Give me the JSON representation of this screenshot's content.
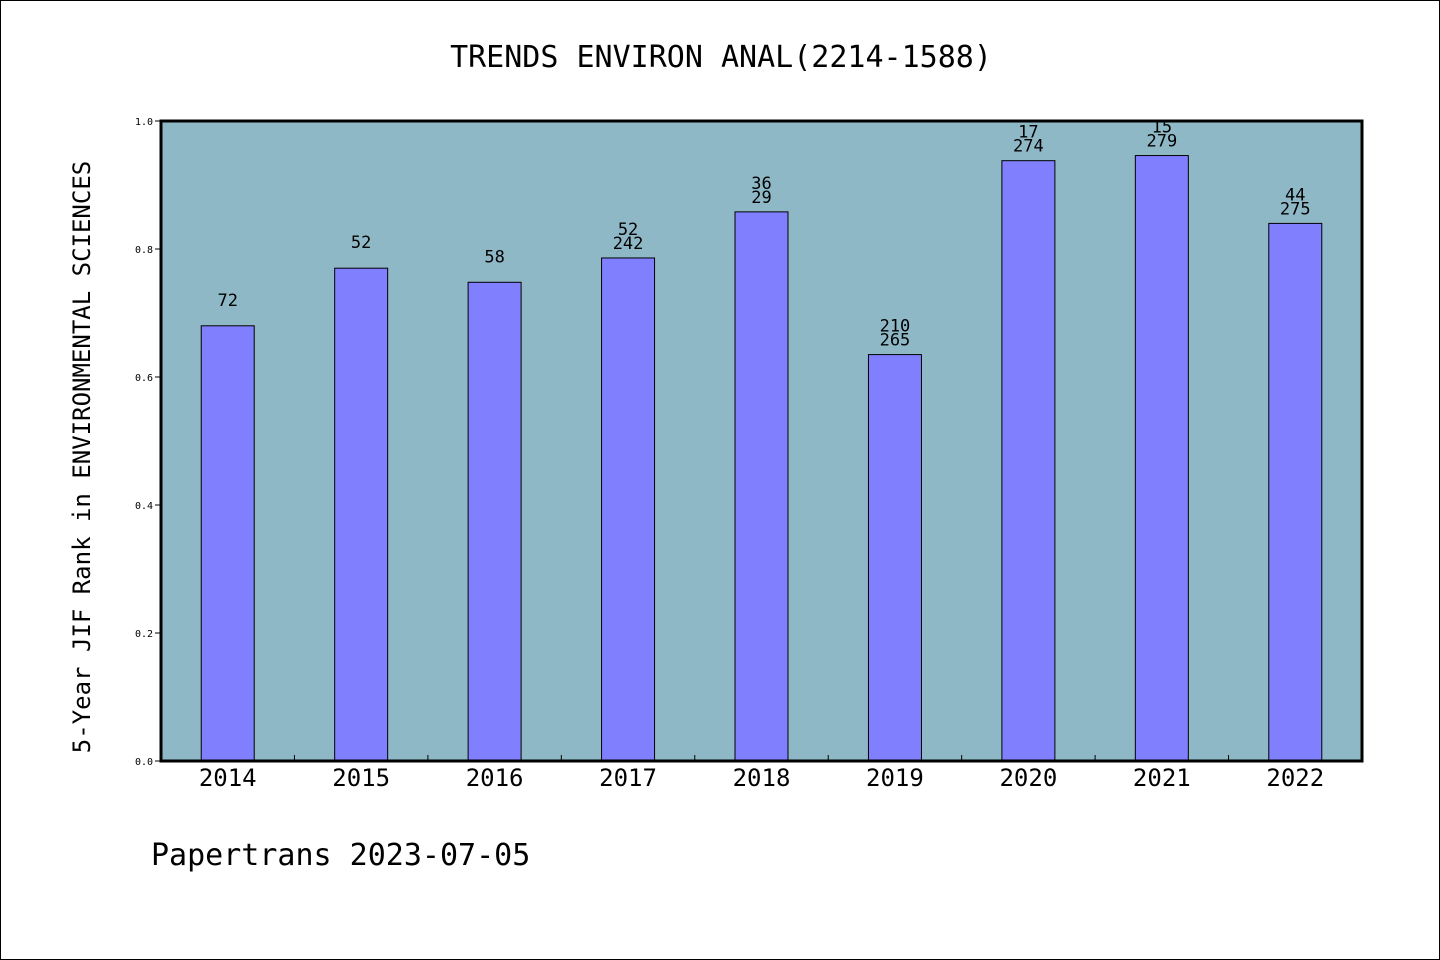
{
  "chart_data": {
    "type": "bar",
    "title": "TRENDS ENVIRON ANAL(2214-1588)",
    "xlabel": "",
    "ylabel": "5-Year JIF Rank in ENVIRONMENTAL SCIENCES",
    "categories": [
      "2014",
      "2015",
      "2016",
      "2017",
      "2018",
      "2019",
      "2020",
      "2021",
      "2022"
    ],
    "values": [
      0.68,
      0.77,
      0.748,
      0.786,
      0.858,
      0.635,
      0.938,
      0.946,
      0.84
    ],
    "bar_labels": [
      [
        "72"
      ],
      [
        "52"
      ],
      [
        "58"
      ],
      [
        "52",
        "242"
      ],
      [
        "36",
        "29"
      ],
      [
        "210",
        "265"
      ],
      [
        "17",
        "274"
      ],
      [
        "15",
        "279"
      ],
      [
        "44",
        "275"
      ]
    ],
    "ylim": [
      0,
      1.0
    ],
    "yticks": [
      "0.0",
      "0.2",
      "0.4",
      "0.6",
      "0.8",
      "1.0"
    ],
    "grid": false,
    "colors": {
      "plot_background": "#8fb8c7",
      "bar_fill": "#8080ff",
      "bar_stroke": "#000000"
    }
  },
  "footer": {
    "text": "Papertrans 2023-07-05"
  }
}
